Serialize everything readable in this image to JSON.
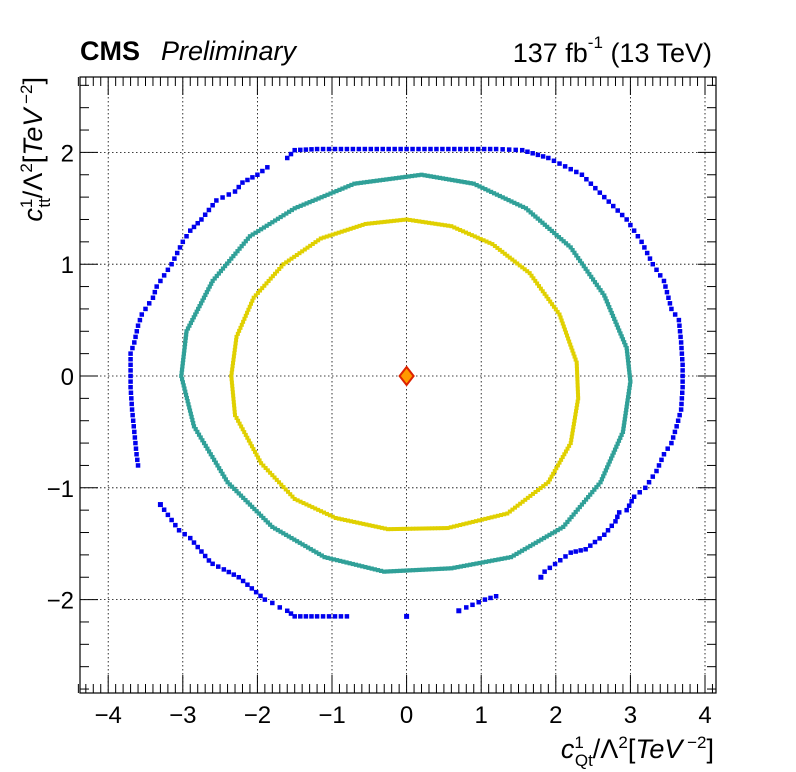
{
  "header": {
    "experiment": "CMS",
    "status": "Preliminary",
    "lumi_value": "137 fb",
    "lumi_exp": "-1",
    "energy": "(13 TeV)"
  },
  "chart_data": {
    "type": "scatter",
    "xlabel": "c_Qt^1/Λ^2[TeV^-2]",
    "ylabel": "c_tt^1/Λ^2[TeV^-2]",
    "xlim": [
      -4.4,
      4.1
    ],
    "ylim": [
      -2.8,
      2.7
    ],
    "xticks": [
      "−4",
      "−3",
      "−2",
      "−1",
      "0",
      "1",
      "2",
      "3",
      "4"
    ],
    "yticks": [
      "−2",
      "−1",
      "0",
      "1",
      "2"
    ],
    "grid": true,
    "best_fit": {
      "x": 0.0,
      "y": 0.0,
      "color": "#ff9900",
      "edge": "#dd2200"
    },
    "series": [
      {
        "color": "#e0d000",
        "points": [
          [
            0.0,
            1.4
          ],
          [
            0.6,
            1.34
          ],
          [
            1.15,
            1.18
          ],
          [
            1.65,
            0.92
          ],
          [
            2.05,
            0.55
          ],
          [
            2.28,
            0.12
          ],
          [
            2.3,
            -0.2
          ],
          [
            2.2,
            -0.6
          ],
          [
            1.9,
            -0.95
          ],
          [
            1.35,
            -1.23
          ],
          [
            0.55,
            -1.36
          ],
          [
            -0.25,
            -1.37
          ],
          [
            -0.95,
            -1.27
          ],
          [
            -1.5,
            -1.1
          ],
          [
            -1.95,
            -0.78
          ],
          [
            -2.3,
            -0.35
          ],
          [
            -2.35,
            0.0
          ],
          [
            -2.28,
            0.35
          ],
          [
            -2.05,
            0.7
          ],
          [
            -1.65,
            1.0
          ],
          [
            -1.15,
            1.23
          ],
          [
            -0.55,
            1.36
          ],
          [
            0.0,
            1.4
          ]
        ]
      },
      {
        "color": "#30a098",
        "points": [
          [
            0.2,
            1.8
          ],
          [
            0.9,
            1.72
          ],
          [
            1.6,
            1.5
          ],
          [
            2.2,
            1.15
          ],
          [
            2.65,
            0.72
          ],
          [
            2.95,
            0.25
          ],
          [
            3.0,
            -0.05
          ],
          [
            2.9,
            -0.5
          ],
          [
            2.6,
            -0.95
          ],
          [
            2.1,
            -1.35
          ],
          [
            1.4,
            -1.62
          ],
          [
            0.6,
            -1.72
          ],
          [
            -0.3,
            -1.75
          ],
          [
            -1.1,
            -1.62
          ],
          [
            -1.8,
            -1.35
          ],
          [
            -2.4,
            -0.95
          ],
          [
            -2.85,
            -0.45
          ],
          [
            -3.02,
            0.0
          ],
          [
            -2.95,
            0.4
          ],
          [
            -2.6,
            0.85
          ],
          [
            -2.1,
            1.25
          ],
          [
            -1.5,
            1.5
          ],
          [
            -0.7,
            1.72
          ],
          [
            0.2,
            1.8
          ]
        ]
      },
      {
        "color": "#0000ee",
        "points": [
          [
            -1.6,
            1.95
          ],
          [
            -1.5,
            2.02
          ],
          [
            -1.2,
            2.03
          ],
          [
            -0.8,
            2.03
          ],
          [
            -0.4,
            2.03
          ],
          [
            0.0,
            2.03
          ],
          [
            0.4,
            2.03
          ],
          [
            0.8,
            2.03
          ],
          [
            1.2,
            2.03
          ],
          [
            1.55,
            2.02
          ],
          [
            1.9,
            1.95
          ],
          [
            2.35,
            1.8
          ],
          [
            2.65,
            1.6
          ],
          [
            2.95,
            1.4
          ],
          [
            3.15,
            1.2
          ],
          [
            3.3,
            1.0
          ],
          [
            3.45,
            0.85
          ],
          [
            3.55,
            0.6
          ],
          [
            3.65,
            0.5
          ],
          [
            3.68,
            0.3
          ],
          [
            3.7,
            0.1
          ],
          [
            3.7,
            -0.1
          ],
          [
            3.68,
            -0.3
          ],
          [
            3.62,
            -0.45
          ],
          [
            3.55,
            -0.6
          ],
          [
            3.45,
            -0.7
          ],
          [
            3.35,
            -0.85
          ],
          [
            3.2,
            -1.0
          ],
          [
            3.05,
            -1.08
          ],
          [
            2.95,
            -1.2
          ],
          [
            2.85,
            -1.22
          ],
          [
            2.8,
            -1.3
          ],
          [
            2.65,
            -1.42
          ],
          [
            2.4,
            -1.55
          ],
          [
            2.2,
            -1.58
          ],
          [
            1.85,
            -1.75
          ],
          [
            1.8,
            -1.8
          ],
          [
            1.2,
            -1.97
          ],
          [
            1.05,
            -2.0
          ],
          [
            0.8,
            -2.07
          ],
          [
            0.7,
            -2.1
          ],
          [
            0.0,
            -2.15
          ],
          [
            -0.8,
            -2.15
          ],
          [
            -1.2,
            -2.15
          ],
          [
            -1.5,
            -2.15
          ],
          [
            -1.6,
            -2.1
          ],
          [
            -1.7,
            -2.07
          ],
          [
            -1.8,
            -2.03
          ],
          [
            -1.9,
            -2.0
          ],
          [
            -2.25,
            -1.8
          ],
          [
            -2.45,
            -1.73
          ],
          [
            -2.6,
            -1.68
          ],
          [
            -2.65,
            -1.65
          ],
          [
            -2.9,
            -1.45
          ],
          [
            -3.05,
            -1.38
          ],
          [
            -3.3,
            -1.15
          ],
          [
            -3.6,
            -0.8
          ],
          [
            -3.62,
            -0.7
          ],
          [
            -3.65,
            -0.5
          ],
          [
            -3.68,
            -0.3
          ],
          [
            -3.7,
            -0.1
          ],
          [
            -3.7,
            0.1
          ],
          [
            -3.7,
            0.2
          ],
          [
            -3.65,
            0.3
          ],
          [
            -3.6,
            0.45
          ],
          [
            -3.55,
            0.55
          ],
          [
            -3.4,
            0.7
          ],
          [
            -3.35,
            0.8
          ],
          [
            -3.2,
            0.95
          ],
          [
            -3.15,
            1.0
          ],
          [
            -3.0,
            1.2
          ],
          [
            -2.9,
            1.3
          ],
          [
            -2.75,
            1.4
          ],
          [
            -2.55,
            1.57
          ],
          [
            -2.3,
            1.65
          ],
          [
            -2.2,
            1.73
          ],
          [
            -2.0,
            1.8
          ],
          [
            -1.8,
            1.9
          ]
        ]
      }
    ]
  }
}
